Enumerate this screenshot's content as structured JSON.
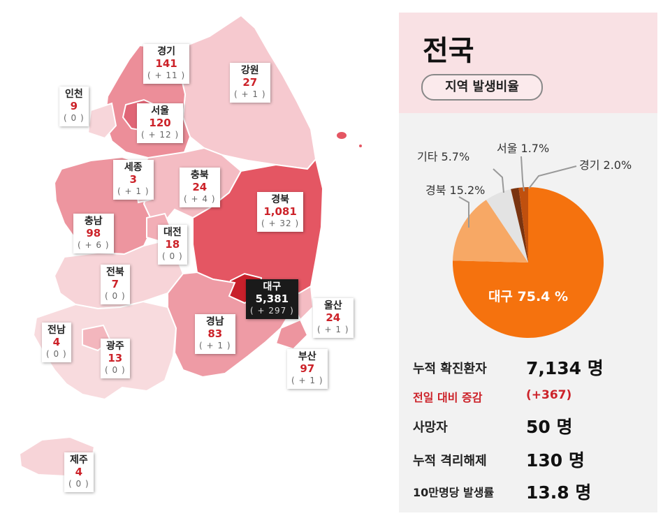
{
  "regions": [
    {
      "id": "gyeonggi",
      "name": "경기",
      "count": "141",
      "diff": "( + 11 )"
    },
    {
      "id": "gangwon",
      "name": "강원",
      "count": "27",
      "diff": "( + 1 )"
    },
    {
      "id": "incheon",
      "name": "인천",
      "count": "9",
      "diff": "( 0 )"
    },
    {
      "id": "seoul",
      "name": "서울",
      "count": "120",
      "diff": "( + 12 )"
    },
    {
      "id": "sejong",
      "name": "세종",
      "count": "3",
      "diff": "( + 1 )"
    },
    {
      "id": "chungbuk",
      "name": "충북",
      "count": "24",
      "diff": "( + 4 )"
    },
    {
      "id": "gyeongbuk",
      "name": "경북",
      "count": "1,081",
      "diff": "( + 32 )"
    },
    {
      "id": "chungnam",
      "name": "충남",
      "count": "98",
      "diff": "( + 6 )"
    },
    {
      "id": "daejeon",
      "name": "대전",
      "count": "18",
      "diff": "( 0 )"
    },
    {
      "id": "jeonbuk",
      "name": "전북",
      "count": "7",
      "diff": "( 0 )"
    },
    {
      "id": "daegu",
      "name": "대구",
      "count": "5,381",
      "diff": "( + 297 )"
    },
    {
      "id": "ulsan",
      "name": "울산",
      "count": "24",
      "diff": "( + 1 )"
    },
    {
      "id": "jeonnam",
      "name": "전남",
      "count": "4",
      "diff": "( 0 )"
    },
    {
      "id": "gwangju",
      "name": "광주",
      "count": "13",
      "diff": "( 0 )"
    },
    {
      "id": "gyeongnam",
      "name": "경남",
      "count": "83",
      "diff": "( + 1 )"
    },
    {
      "id": "busan",
      "name": "부산",
      "count": "97",
      "diff": "( + 1 )"
    },
    {
      "id": "jeju",
      "name": "제주",
      "count": "4",
      "diff": "( 0 )"
    }
  ],
  "panel": {
    "title": "전국",
    "badge": "지역 발생비율",
    "stats": [
      {
        "label": "누적 확진환자",
        "value": "7,134 명"
      },
      {
        "label": "전일 대비 증감",
        "value": "(+367)"
      },
      {
        "label": "사망자",
        "value": "50 명"
      },
      {
        "label": "누적 격리해제",
        "value": "130 명"
      },
      {
        "label": "10만명당 발생률",
        "value": "13.8 명"
      }
    ]
  },
  "chart_data": {
    "type": "pie",
    "slices": [
      {
        "label": "대구",
        "value": 75.4,
        "text": "대구 75.4 %",
        "color": "#f5720e"
      },
      {
        "label": "경북",
        "value": 15.2,
        "text": "경북 15.2%",
        "color": "#f7a865"
      },
      {
        "label": "기타",
        "value": 5.7,
        "text": "기타 5.7%",
        "color": "#e3e3e3"
      },
      {
        "label": "서울",
        "value": 1.7,
        "text": "서울 1.7%",
        "color": "#7a3410"
      },
      {
        "label": "경기",
        "value": 2.0,
        "text": "경기 2.0%",
        "color": "#c0500e"
      }
    ]
  },
  "colors": {
    "accent_red": "#cc2229",
    "panel_bg": "#f2f2f2",
    "panel_header_bg": "#f9e1e4"
  }
}
